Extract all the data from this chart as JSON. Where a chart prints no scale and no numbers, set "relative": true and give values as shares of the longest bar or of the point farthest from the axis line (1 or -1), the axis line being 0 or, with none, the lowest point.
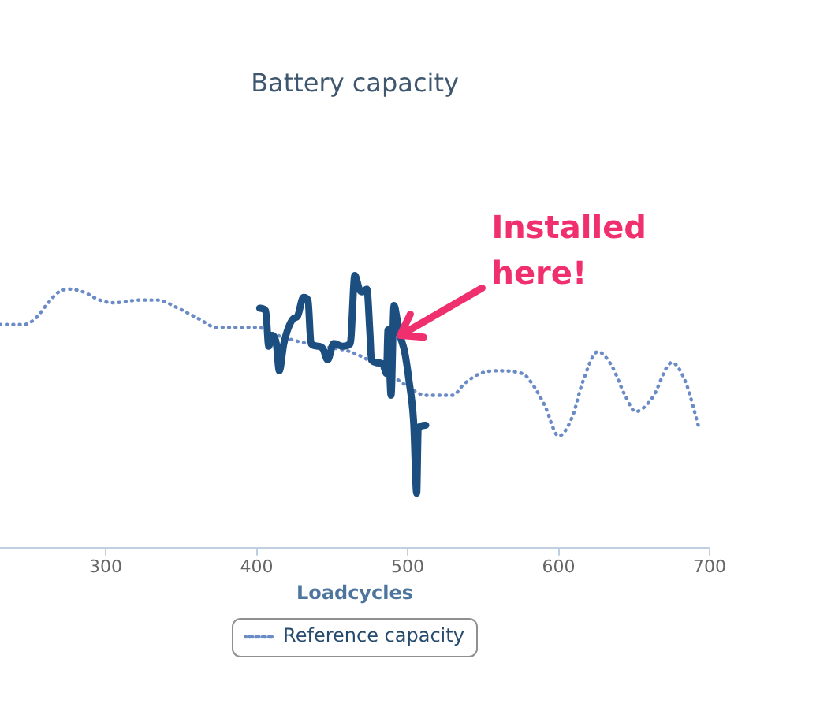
{
  "chart_data": {
    "type": "line",
    "title": "Battery capacity",
    "xlabel": "Loadcycles",
    "relative": true,
    "xlim": [
      230,
      700
    ],
    "xticks": [
      300,
      400,
      500,
      600,
      700
    ],
    "legend": "bottom",
    "marker": "none",
    "annotations": [
      {
        "text": "Installed here!",
        "x": 495,
        "y": 0.78
      }
    ],
    "series": [
      {
        "color": "#1c4f80",
        "line_style": "solid",
        "x": [
          402,
          406,
          408,
          410,
          413,
          415,
          418,
          424,
          427,
          431,
          434,
          436,
          441,
          444,
          447,
          451,
          457,
          462,
          465,
          468,
          470,
          473,
          475,
          476,
          480,
          484,
          486,
          487,
          489,
          491,
          493,
          495,
          498,
          501,
          504,
          506,
          507,
          512
        ],
        "values": [
          0.88,
          0.87,
          0.74,
          0.78,
          0.75,
          0.65,
          0.75,
          0.84,
          0.85,
          0.92,
          0.91,
          0.75,
          0.74,
          0.73,
          0.69,
          0.75,
          0.74,
          0.75,
          1,
          0.95,
          0.94,
          0.95,
          0.79,
          0.69,
          0.68,
          0.67,
          0.64,
          0.8,
          0.56,
          0.89,
          0.84,
          0.78,
          0.72,
          0.61,
          0.46,
          0.2,
          0.44,
          0.45
        ]
      },
      {
        "name": "Reference capacity",
        "color": "#6a8bc6",
        "line_style": "dotted",
        "x": [
          230,
          246,
          253,
          262,
          269,
          276,
          285,
          296,
          305,
          323,
          334,
          348,
          362,
          373,
          401,
          409,
          426,
          444,
          462,
          480,
          498,
          512,
          519,
          530,
          537,
          548,
          559,
          576,
          584,
          591,
          600,
          609,
          616,
          626,
          635,
          644,
          651,
          662,
          675,
          684,
          693
        ],
        "values": [
          0.82,
          0.82,
          0.84,
          0.9,
          0.94,
          0.95,
          0.94,
          0.91,
          0.9,
          0.91,
          0.91,
          0.88,
          0.84,
          0.81,
          0.81,
          0.79,
          0.76,
          0.74,
          0.72,
          0.67,
          0.6,
          0.56,
          0.56,
          0.56,
          0.6,
          0.64,
          0.65,
          0.64,
          0.59,
          0.52,
          0.41,
          0.48,
          0.61,
          0.72,
          0.67,
          0.56,
          0.5,
          0.55,
          0.68,
          0.61,
          0.44
        ]
      }
    ]
  }
}
